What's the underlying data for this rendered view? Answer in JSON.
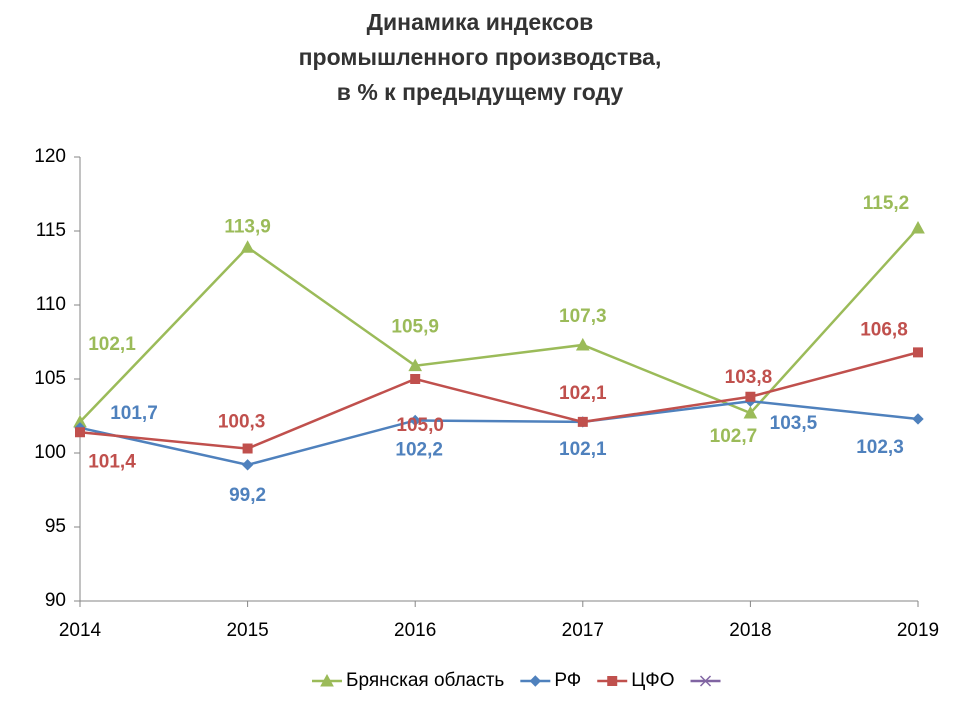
{
  "chart_data": {
    "type": "line",
    "title": [
      "Динамика индексов",
      "промышленного производства,",
      "в % к предыдущему году"
    ],
    "categories": [
      "2014",
      "2015",
      "2016",
      "2017",
      "2018",
      "2019"
    ],
    "ylim": [
      90,
      120
    ],
    "yticks": [
      90,
      95,
      100,
      105,
      110,
      115,
      120
    ],
    "grid": false,
    "legend": "bottom",
    "series": [
      {
        "name": "Брянская область",
        "color": "#9bbb59",
        "marker": "triangle",
        "values": [
          102.1,
          113.9,
          105.9,
          107.3,
          102.7,
          115.2
        ],
        "value_labels": [
          "102,1",
          "113,9",
          "105,9",
          "107,3",
          "102,7",
          "115,2"
        ]
      },
      {
        "name": "РФ",
        "color": "#4f81bd",
        "marker": "diamond",
        "values": [
          101.7,
          99.2,
          102.2,
          102.1,
          103.5,
          102.3
        ],
        "value_labels": [
          "101,7",
          "99,2",
          "102,2",
          "102,1",
          "103,5",
          "102,3"
        ]
      },
      {
        "name": "ЦФО",
        "color": "#c0504d",
        "marker": "square",
        "values": [
          101.4,
          100.3,
          105.0,
          102.1,
          103.8,
          106.8
        ],
        "value_labels": [
          "101,4",
          "100,3",
          "105,0",
          "102,1",
          "103,8",
          "106,8"
        ]
      },
      {
        "name": null,
        "color": "#8064a2",
        "marker": "x",
        "values": [
          null,
          null,
          null,
          null,
          null,
          null
        ]
      }
    ]
  }
}
